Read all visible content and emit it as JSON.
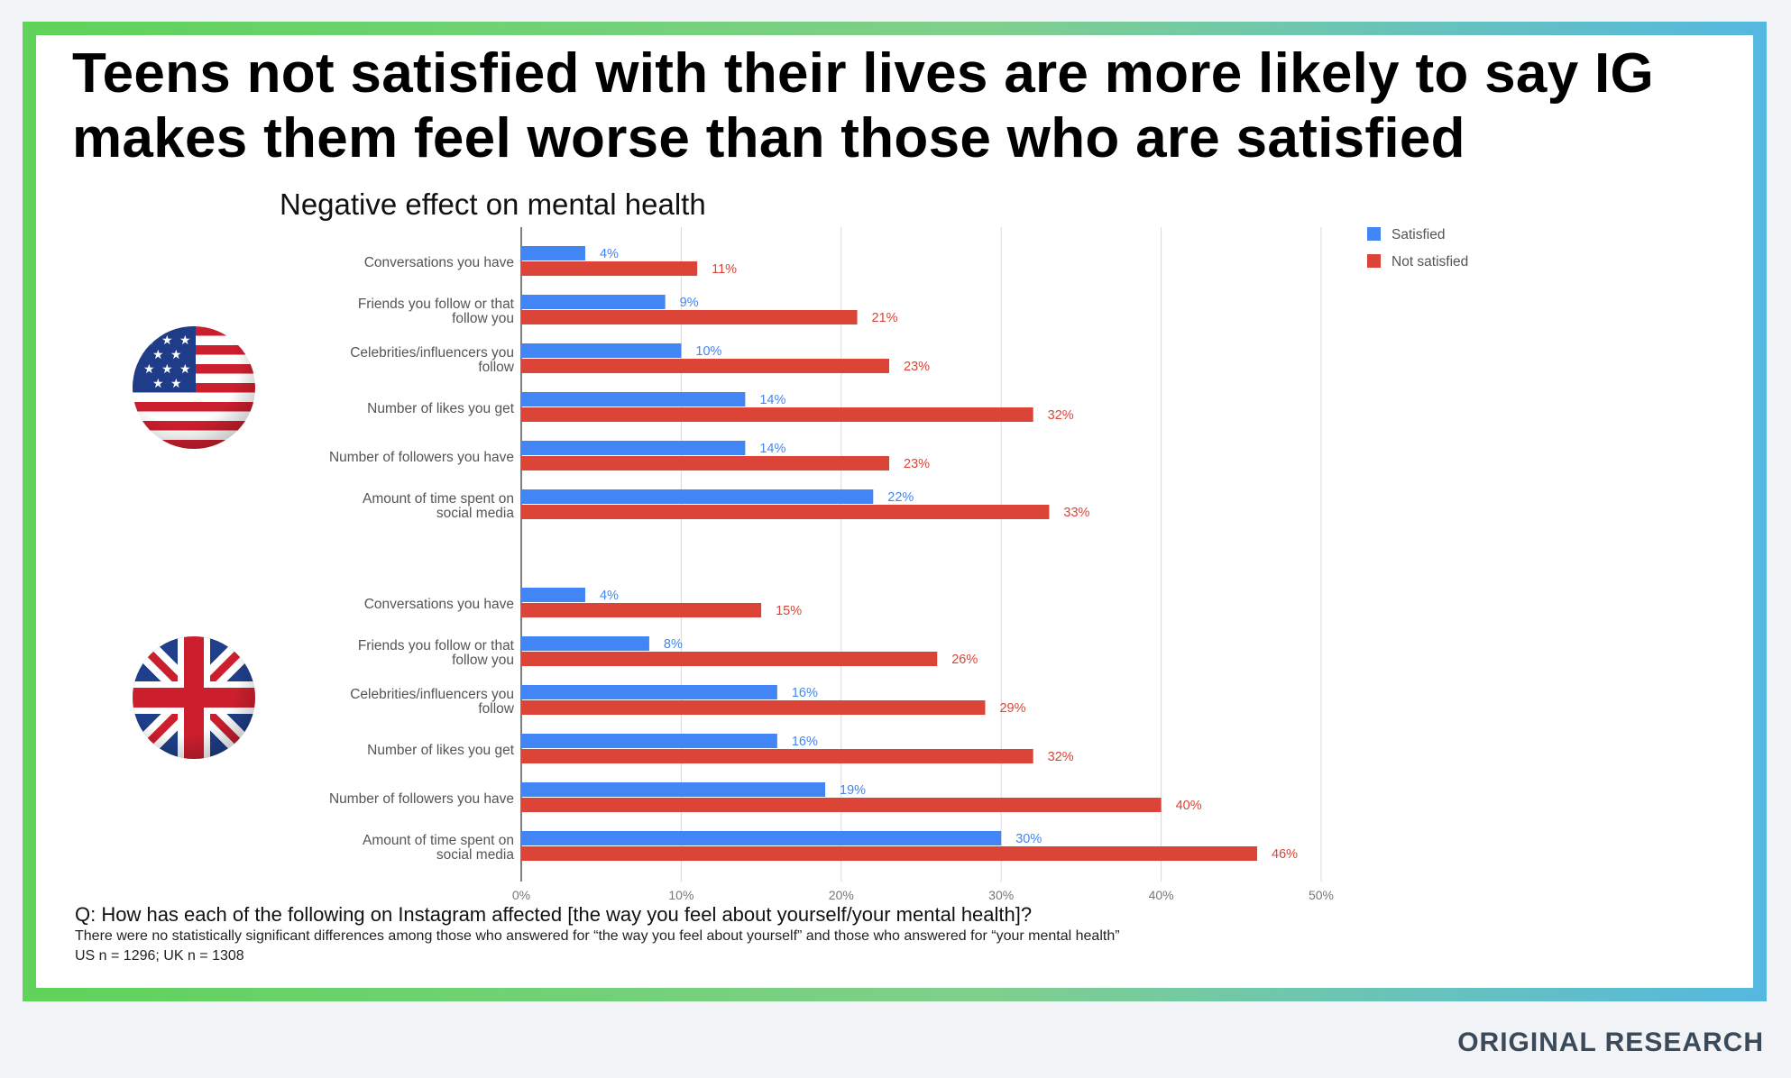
{
  "page": {
    "headline": "Teens not satisfied with their lives are more likely to say IG makes them feel worse than those who are satisfied",
    "question": "Q: How has each of the following on Instagram affected [the way you feel about yourself/your mental health]?",
    "footnote": "There were no statistically significant differences among those who answered for “the way you feel about yourself” and those who answered for “your mental health”",
    "sample": "US n = 1296; UK n = 1308",
    "brand": "ORIGINAL RESEARCH"
  },
  "flags": {
    "top": "us-flag-icon",
    "bottom": "uk-flag-icon"
  },
  "chart_data": {
    "type": "bar",
    "orientation": "horizontal",
    "title": "Negative effect on mental health",
    "xlim": [
      0,
      50
    ],
    "ticks": [
      "0%",
      "10%",
      "20%",
      "30%",
      "40%",
      "50%"
    ],
    "tick_values": [
      0,
      10,
      20,
      30,
      40,
      50
    ],
    "grid": true,
    "legend_position": "top-right",
    "colors": {
      "Satisfied": "#4285f4",
      "Not satisfied": "#db4437"
    },
    "groups": [
      {
        "flag": "us-flag-icon",
        "categories": [
          "Conversations you have",
          "Friends you follow or that follow you",
          "Celebrities/influencers you follow",
          "Number of likes you get",
          "Number of followers you have",
          "Amount of time spent on social media"
        ],
        "series": [
          {
            "name": "Satisfied",
            "values": [
              4,
              9,
              10,
              14,
              14,
              22
            ]
          },
          {
            "name": "Not satisfied",
            "values": [
              11,
              21,
              23,
              32,
              23,
              33
            ]
          }
        ]
      },
      {
        "flag": "uk-flag-icon",
        "categories": [
          "Conversations you have",
          "Friends you follow or that follow you",
          "Celebrities/influencers you follow",
          "Number of likes you get",
          "Number of followers you have",
          "Amount of time spent on social media"
        ],
        "series": [
          {
            "name": "Satisfied",
            "values": [
              4,
              8,
              16,
              16,
              19,
              30
            ]
          },
          {
            "name": "Not satisfied",
            "values": [
              15,
              26,
              29,
              32,
              40,
              46
            ]
          }
        ]
      }
    ],
    "category_lines": [
      [
        "Conversations you have"
      ],
      [
        "Friends you follow or that",
        "follow you"
      ],
      [
        "Celebrities/influencers you",
        "follow"
      ],
      [
        "Number of likes you get"
      ],
      [
        "Number of followers you have"
      ],
      [
        "Amount of time spent on",
        "social media"
      ]
    ]
  }
}
